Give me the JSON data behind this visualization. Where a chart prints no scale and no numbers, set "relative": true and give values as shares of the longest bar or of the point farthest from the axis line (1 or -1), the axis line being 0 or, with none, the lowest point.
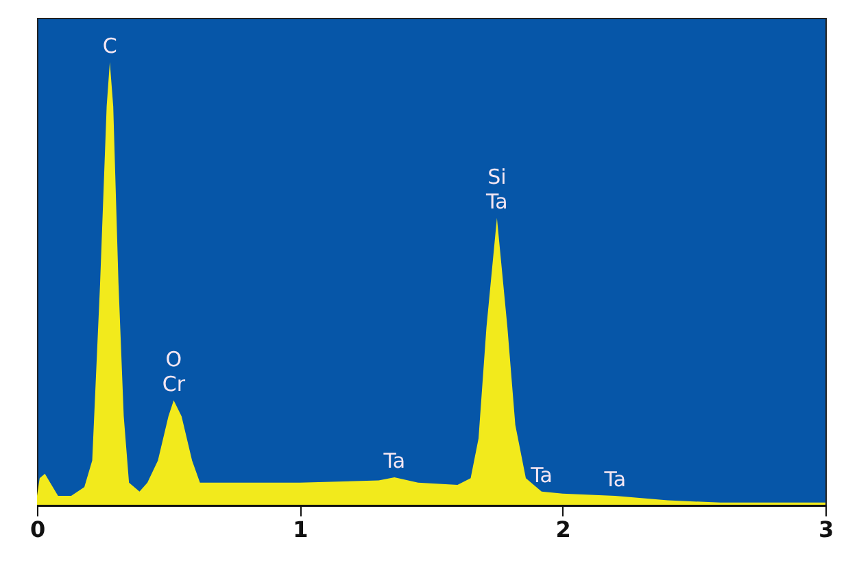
{
  "chart_data": {
    "type": "area",
    "relative": true,
    "x": [
      0,
      0.01,
      0.03,
      0.05,
      0.08,
      0.13,
      0.18,
      0.21,
      0.24,
      0.265,
      0.277,
      0.29,
      0.31,
      0.33,
      0.35,
      0.39,
      0.42,
      0.46,
      0.5,
      0.52,
      0.55,
      0.59,
      0.62,
      0.7,
      1.0,
      1.3,
      1.36,
      1.45,
      1.6,
      1.65,
      1.68,
      1.71,
      1.75,
      1.79,
      1.82,
      1.86,
      1.92,
      2.0,
      2.2,
      2.4,
      2.6,
      3.0
    ],
    "series": [
      {
        "color": "#f2ea1c",
        "values": [
          0.02,
          0.06,
          0.07,
          0.05,
          0.02,
          0.02,
          0.04,
          0.1,
          0.5,
          0.9,
          1,
          0.9,
          0.5,
          0.2,
          0.05,
          0.03,
          0.05,
          0.1,
          0.2,
          0.236,
          0.2,
          0.1,
          0.05,
          0.05,
          0.05,
          0.055,
          0.062,
          0.05,
          0.045,
          0.06,
          0.15,
          0.4,
          0.648,
          0.4,
          0.18,
          0.06,
          0.03,
          0.025,
          0.02,
          0.01,
          0.005,
          0.005
        ]
      }
    ],
    "xlim": [
      0,
      3
    ],
    "xticks": [
      0,
      1,
      2,
      3
    ],
    "annotations": [
      {
        "text": "C",
        "x": 0.277,
        "y": 1
      },
      {
        "text": "O",
        "x": 0.52,
        "y": 0.236
      },
      {
        "text": "Cr",
        "x": 0.52,
        "y": 0.236
      },
      {
        "text": "Ta",
        "x": 1.36,
        "y": 0.062
      },
      {
        "text": "Si",
        "x": 1.75,
        "y": 0.648
      },
      {
        "text": "Ta",
        "x": 1.75,
        "y": 0.648
      },
      {
        "text": "Ta",
        "x": 1.92,
        "y": 0.03
      },
      {
        "text": "Ta",
        "x": 2.2,
        "y": 0.02
      }
    ]
  }
}
